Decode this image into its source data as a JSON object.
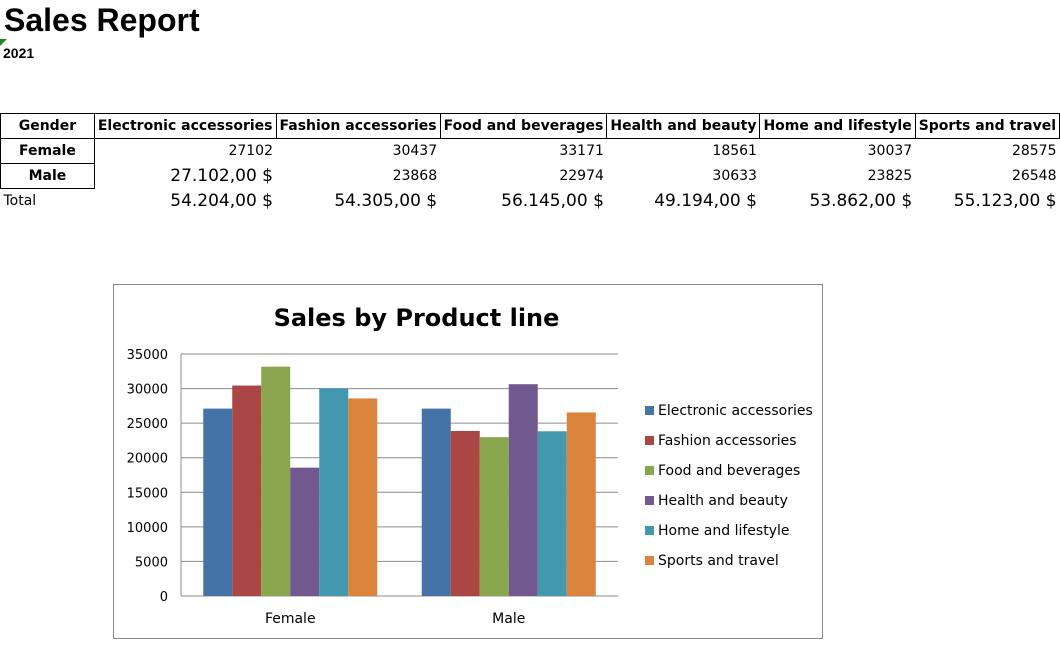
{
  "report": {
    "title": "Sales Report",
    "year": "2021"
  },
  "table": {
    "headers": [
      "Gender",
      "Electronic accessories",
      "Fashion accessories",
      "Food and beverages",
      "Health and beauty",
      "Home and lifestyle",
      "Sports and travel"
    ],
    "female": {
      "label": "Female",
      "values": [
        "27102",
        "30437",
        "33171",
        "18561",
        "30037",
        "28575"
      ]
    },
    "male": {
      "label": "Male",
      "first": "27.102,00 $",
      "values": [
        "23868",
        "22974",
        "30633",
        "23825",
        "26548"
      ]
    },
    "total": {
      "label": "Total",
      "values": [
        "54.204,00 $",
        "54.305,00 $",
        "56.145,00 $",
        "49.194,00 $",
        "53.862,00 $",
        "55.123,00 $"
      ]
    }
  },
  "chart_data": {
    "type": "bar",
    "title": "Sales by Product line",
    "categories": [
      "Female",
      "Male"
    ],
    "series": [
      {
        "name": "Electronic accessories",
        "values": [
          27102,
          27102
        ],
        "color": "#4572A7"
      },
      {
        "name": "Fashion accessories",
        "values": [
          30437,
          23868
        ],
        "color": "#AA4643"
      },
      {
        "name": "Food and beverages",
        "values": [
          33171,
          22974
        ],
        "color": "#89A54E"
      },
      {
        "name": "Health and beauty",
        "values": [
          18561,
          30633
        ],
        "color": "#71588F"
      },
      {
        "name": "Home and lifestyle",
        "values": [
          30037,
          23825
        ],
        "color": "#4198AF"
      },
      {
        "name": "Sports and travel",
        "values": [
          28575,
          26548
        ],
        "color": "#DB843D"
      }
    ],
    "yticks": [
      0,
      5000,
      10000,
      15000,
      20000,
      25000,
      30000,
      35000
    ],
    "ylim": [
      0,
      35000
    ],
    "grid": true,
    "legend": "right"
  }
}
